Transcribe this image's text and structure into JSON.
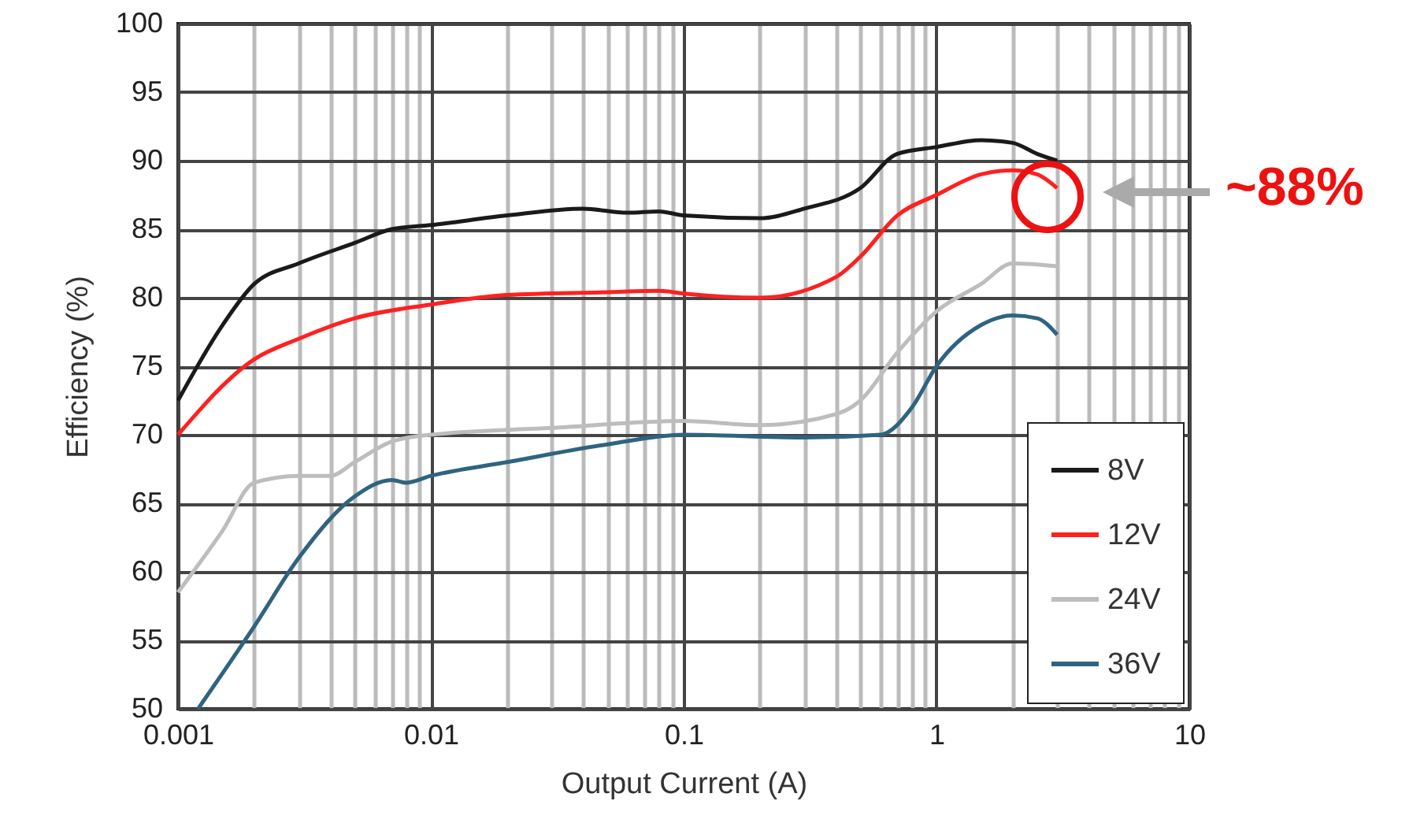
{
  "chart_data": {
    "type": "line",
    "xlabel": "Output Current (A)",
    "ylabel": "Efficiency (%)",
    "log": "x",
    "xlim": [
      0.001,
      10
    ],
    "xticks": [
      0.001,
      {
        "value": 0.002,
        "label": null
      },
      {
        "value": 0.003,
        "label": null
      },
      {
        "value": 0.004,
        "label": null
      },
      {
        "value": 0.005,
        "label": null
      },
      {
        "value": 0.006,
        "label": null
      },
      {
        "value": 0.007,
        "label": null
      },
      {
        "value": 0.008,
        "label": null
      },
      {
        "value": 0.009,
        "label": null
      },
      0.01,
      {
        "value": 0.02,
        "label": null
      },
      {
        "value": 0.03,
        "label": null
      },
      {
        "value": 0.04,
        "label": null
      },
      {
        "value": 0.05,
        "label": null
      },
      {
        "value": 0.06,
        "label": null
      },
      {
        "value": 0.07,
        "label": null
      },
      {
        "value": 0.08,
        "label": null
      },
      {
        "value": 0.09,
        "label": null
      },
      0.1,
      {
        "value": 0.2,
        "label": null
      },
      {
        "value": 0.3,
        "label": null
      },
      {
        "value": 0.4,
        "label": null
      },
      {
        "value": 0.5,
        "label": null
      },
      {
        "value": 0.6,
        "label": null
      },
      {
        "value": 0.7,
        "label": null
      },
      {
        "value": 0.8,
        "label": null
      },
      {
        "value": 0.9,
        "label": null
      },
      1,
      {
        "value": 2,
        "label": null
      },
      {
        "value": 3,
        "label": null
      },
      {
        "value": 4,
        "label": null
      },
      {
        "value": 5,
        "label": null
      },
      {
        "value": 6,
        "label": null
      },
      {
        "value": 7,
        "label": null
      },
      {
        "value": 8,
        "label": null
      },
      {
        "value": 9,
        "label": null
      },
      10
    ],
    "ylim": [
      50,
      100
    ],
    "yticks": [
      50,
      55,
      60,
      65,
      70,
      75,
      80,
      85,
      90,
      95,
      100
    ],
    "grid": true,
    "legend": "bottom right",
    "marker": "none",
    "line_style": "solid",
    "series": [
      {
        "name": "8V",
        "color": "#1a1a1a",
        "x": [
          0.001,
          0.0015,
          0.002,
          0.003,
          0.005,
          0.007,
          0.01,
          0.02,
          0.04,
          0.06,
          0.08,
          0.1,
          0.2,
          0.3,
          0.5,
          0.7,
          1,
          1.5,
          2,
          2.5,
          3
        ],
        "values": [
          72.5,
          78,
          81,
          82.5,
          84,
          85,
          85.3,
          86,
          86.5,
          86.2,
          86.3,
          86,
          85.8,
          86.5,
          88,
          90.5,
          91,
          91.5,
          91.3,
          90.5,
          90
        ]
      },
      {
        "name": "12V",
        "color": "#ff2020",
        "x": [
          0.001,
          0.002,
          0.003,
          0.005,
          0.01,
          0.02,
          0.05,
          0.08,
          0.1,
          0.2,
          0.4,
          0.5,
          0.7,
          1,
          1.5,
          2,
          2.5,
          3
        ],
        "values": [
          70,
          75.5,
          77,
          78.5,
          79.5,
          80.2,
          80.4,
          80.5,
          80.3,
          80,
          81.5,
          83,
          86,
          87.5,
          89,
          89.3,
          89,
          88
        ]
      },
      {
        "name": "24V",
        "color": "#bdbdbd",
        "x": [
          0.001,
          0.0015,
          0.002,
          0.003,
          0.004,
          0.005,
          0.007,
          0.01,
          0.03,
          0.1,
          0.2,
          0.4,
          0.5,
          0.7,
          1,
          1.5,
          2,
          3
        ],
        "values": [
          58.5,
          63,
          66.5,
          67,
          67,
          68,
          69.5,
          70,
          70.5,
          71,
          70.7,
          71.5,
          72.5,
          76,
          79,
          81,
          82.5,
          82.3
        ]
      },
      {
        "name": "36V",
        "color": "#2e6480",
        "x": [
          0.0012,
          0.002,
          0.003,
          0.005,
          0.007,
          0.008,
          0.01,
          0.02,
          0.05,
          0.1,
          0.3,
          0.6,
          0.8,
          1,
          1.5,
          2,
          2.5,
          3
        ],
        "values": [
          50,
          56,
          61,
          65.5,
          66.7,
          66.5,
          67,
          68,
          69.3,
          70,
          69.8,
          70,
          72,
          75,
          78,
          78.7,
          78.5,
          77.3
        ]
      }
    ],
    "annotations": [
      "~88%"
    ]
  }
}
